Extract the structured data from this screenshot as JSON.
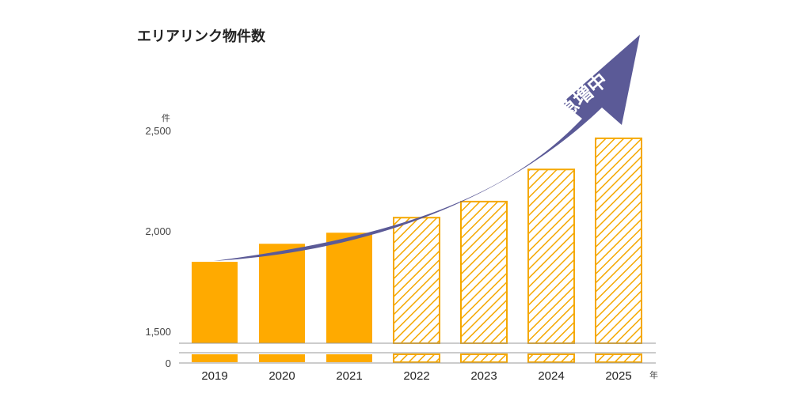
{
  "chart_data": {
    "type": "bar",
    "title": "エリアリンク物件数",
    "y_unit": "件",
    "x_unit": "年",
    "categories": [
      "2019",
      "2020",
      "2021",
      "2022",
      "2023",
      "2024",
      "2025"
    ],
    "series": [
      {
        "values": [
          1850,
          1940,
          1995,
          2070,
          2150,
          2310,
          2465
        ],
        "kind": [
          "actual",
          "actual",
          "actual",
          "forecast",
          "forecast",
          "forecast",
          "forecast"
        ]
      }
    ],
    "yticks": [
      "2,500",
      "2,000",
      "1,500",
      "0"
    ],
    "ytick_values": [
      2500,
      2000,
      1500,
      0
    ],
    "ylim": [
      1500,
      2500
    ],
    "axis_break": true,
    "annotation": "出店数急増中",
    "colors": {
      "actual": "#FFAA00",
      "forecast_stroke": "#F5A800",
      "arrow": "#5B5A97"
    }
  }
}
